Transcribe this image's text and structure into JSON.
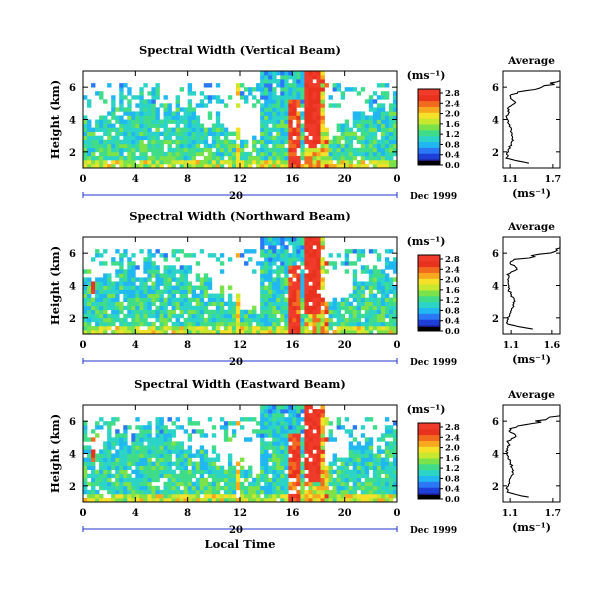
{
  "figure": {
    "xlabel": "Local Time",
    "colors": {
      "scale": [
        "#1a1a80",
        "#1e3fd8",
        "#2a78f5",
        "#21b7f0",
        "#2cd4c8",
        "#3fdc8a",
        "#7be24a",
        "#c8e830",
        "#f5e02a",
        "#f7a81e",
        "#f26a1e",
        "#e8321e",
        "#f03a2a"
      ],
      "axis": "#000000",
      "baseline": "#2233cc"
    }
  },
  "chart_data": [
    {
      "type": "heatmap",
      "title": "Spectral Width (Vertical Beam)",
      "ylabel": "Height (km)",
      "yticks": [
        "2",
        "4",
        "6"
      ],
      "xticks": [
        "0",
        "4",
        "8",
        "12",
        "16",
        "20",
        "0"
      ],
      "date_tick": "20",
      "date_label": "Dec 1999",
      "unit": "(ms⁻¹)",
      "colorbar_ticks": [
        "0.0",
        "0.4",
        "0.8",
        "1.2",
        "1.6",
        "2.0",
        "2.4",
        "2.8"
      ],
      "xlim": [
        0,
        24
      ],
      "ylim": [
        1,
        7
      ],
      "avg": {
        "title": "Average",
        "unit": "(ms⁻¹)",
        "xticks": [
          "1.1",
          "1.7"
        ],
        "yticks": [
          "2",
          "4",
          "6"
        ],
        "xlim": [
          1.0,
          1.8
        ]
      }
    },
    {
      "type": "heatmap",
      "title": "Spectral Width (Northward Beam)",
      "ylabel": "Height (km)",
      "yticks": [
        "2",
        "4",
        "6"
      ],
      "xticks": [
        "0",
        "4",
        "8",
        "12",
        "16",
        "20",
        "0"
      ],
      "date_tick": "20",
      "date_label": "Dec 1999",
      "unit": "(ms⁻¹)",
      "colorbar_ticks": [
        "0.0",
        "0.4",
        "0.8",
        "1.2",
        "1.6",
        "2.0",
        "2.4",
        "2.8"
      ],
      "xlim": [
        0,
        24
      ],
      "ylim": [
        1,
        7
      ],
      "avg": {
        "title": "Average",
        "unit": "(ms⁻¹)",
        "xticks": [
          "1.1",
          "1.6"
        ],
        "yticks": [
          "2",
          "4",
          "6"
        ],
        "xlim": [
          1.0,
          1.7
        ]
      }
    },
    {
      "type": "heatmap",
      "title": "Spectral Width (Eastward Beam)",
      "ylabel": "Height (km)",
      "yticks": [
        "2",
        "4",
        "6"
      ],
      "xticks": [
        "0",
        "4",
        "8",
        "12",
        "16",
        "20",
        "0"
      ],
      "date_tick": "20",
      "date_label": "Dec 1999",
      "unit": "(ms⁻¹)",
      "colorbar_ticks": [
        "0.0",
        "0.4",
        "0.8",
        "1.2",
        "1.6",
        "2.0",
        "2.4",
        "2.8"
      ],
      "xlim": [
        0,
        24
      ],
      "ylim": [
        1,
        7
      ],
      "avg": {
        "title": "Average",
        "unit": "(ms⁻¹)",
        "xticks": [
          "1.1",
          "1.7"
        ],
        "yticks": [
          "2",
          "4",
          "6"
        ],
        "xlim": [
          1.0,
          1.8
        ]
      }
    }
  ]
}
